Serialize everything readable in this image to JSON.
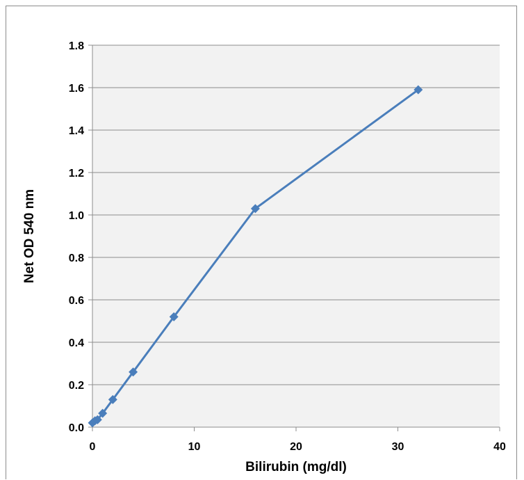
{
  "chart_data": {
    "type": "line",
    "title": "",
    "xlabel": "Bilirubin (mg/dl)",
    "ylabel": "Net OD 540 nm",
    "xlim": [
      0,
      40
    ],
    "ylim": [
      0,
      1.8
    ],
    "x_ticks": [
      "0",
      "10",
      "20",
      "30",
      "40"
    ],
    "y_ticks": [
      "0.0",
      "0.2",
      "0.4",
      "0.6",
      "0.8",
      "1.0",
      "1.2",
      "1.4",
      "1.6",
      "1.8"
    ],
    "grid": true,
    "legend": "none",
    "series": [
      {
        "x": [
          0,
          0.25,
          0.5,
          1,
          2,
          4,
          8,
          16,
          32
        ],
        "y": [
          0.02,
          0.03,
          0.035,
          0.065,
          0.13,
          0.26,
          0.52,
          1.03,
          1.59
        ],
        "marker": "diamond"
      }
    ],
    "colors": {
      "series": "#4a7ebb",
      "plot_bg": "#f2f2f2",
      "grid": "#8c8c8c"
    }
  }
}
